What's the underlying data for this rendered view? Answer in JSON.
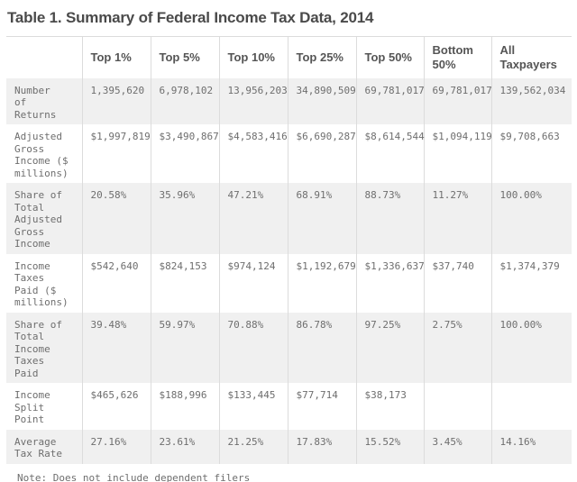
{
  "title": "Table 1. Summary of Federal Income Tax Data, 2014",
  "note": "Note: Does not include dependent filers",
  "colors": {
    "title_text": "#4a4a4a",
    "header_text": "#555555",
    "body_text": "#6e6e6e",
    "row_stripe": "#f0f0f0",
    "border": "#dcdcdc",
    "background": "#ffffff"
  },
  "chart_data": {
    "type": "table",
    "title": "Table 1. Summary of Federal Income Tax Data, 2014",
    "note": "Note: Does not include dependent filers",
    "columns": [
      "",
      "Top 1%",
      "Top 5%",
      "Top 10%",
      "Top 25%",
      "Top 50%",
      "Bottom 50%",
      "All Taxpayers"
    ],
    "rows": [
      {
        "label": "Number\nof\nReturns",
        "label_text": "Number of Returns",
        "values": [
          "1,395,620",
          "6,978,102",
          "13,956,203",
          "34,890,509",
          "69,781,017",
          "69,781,017",
          "139,562,034"
        ]
      },
      {
        "label": "Adjusted\nGross\nIncome ($\nmillions)",
        "label_text": "Adjusted Gross Income ($ millions)",
        "values": [
          "$1,997,819",
          "$3,490,867",
          "$4,583,416",
          "$6,690,287",
          "$8,614,544",
          "$1,094,119",
          "$9,708,663"
        ]
      },
      {
        "label": "Share of\nTotal\nAdjusted\nGross\nIncome",
        "label_text": "Share of Total Adjusted Gross Income",
        "values": [
          "20.58%",
          "35.96%",
          "47.21%",
          "68.91%",
          "88.73%",
          "11.27%",
          "100.00%"
        ]
      },
      {
        "label": "Income\nTaxes\nPaid ($\nmillions)",
        "label_text": "Income Taxes Paid ($ millions)",
        "values": [
          "$542,640",
          "$824,153",
          "$974,124",
          "$1,192,679",
          "$1,336,637",
          "$37,740",
          "$1,374,379"
        ]
      },
      {
        "label": "Share of\nTotal\nIncome\nTaxes\nPaid",
        "label_text": "Share of Total Income Taxes Paid",
        "values": [
          "39.48%",
          "59.97%",
          "70.88%",
          "86.78%",
          "97.25%",
          "2.75%",
          "100.00%"
        ]
      },
      {
        "label": "Income\nSplit\nPoint",
        "label_text": "Income Split Point",
        "values": [
          "$465,626",
          "$188,996",
          "$133,445",
          "$77,714",
          "$38,173",
          "",
          ""
        ]
      },
      {
        "label": "Average\nTax Rate",
        "label_text": "Average Tax Rate",
        "values": [
          "27.16%",
          "23.61%",
          "21.25%",
          "17.83%",
          "15.52%",
          "3.45%",
          "14.16%"
        ]
      }
    ]
  }
}
